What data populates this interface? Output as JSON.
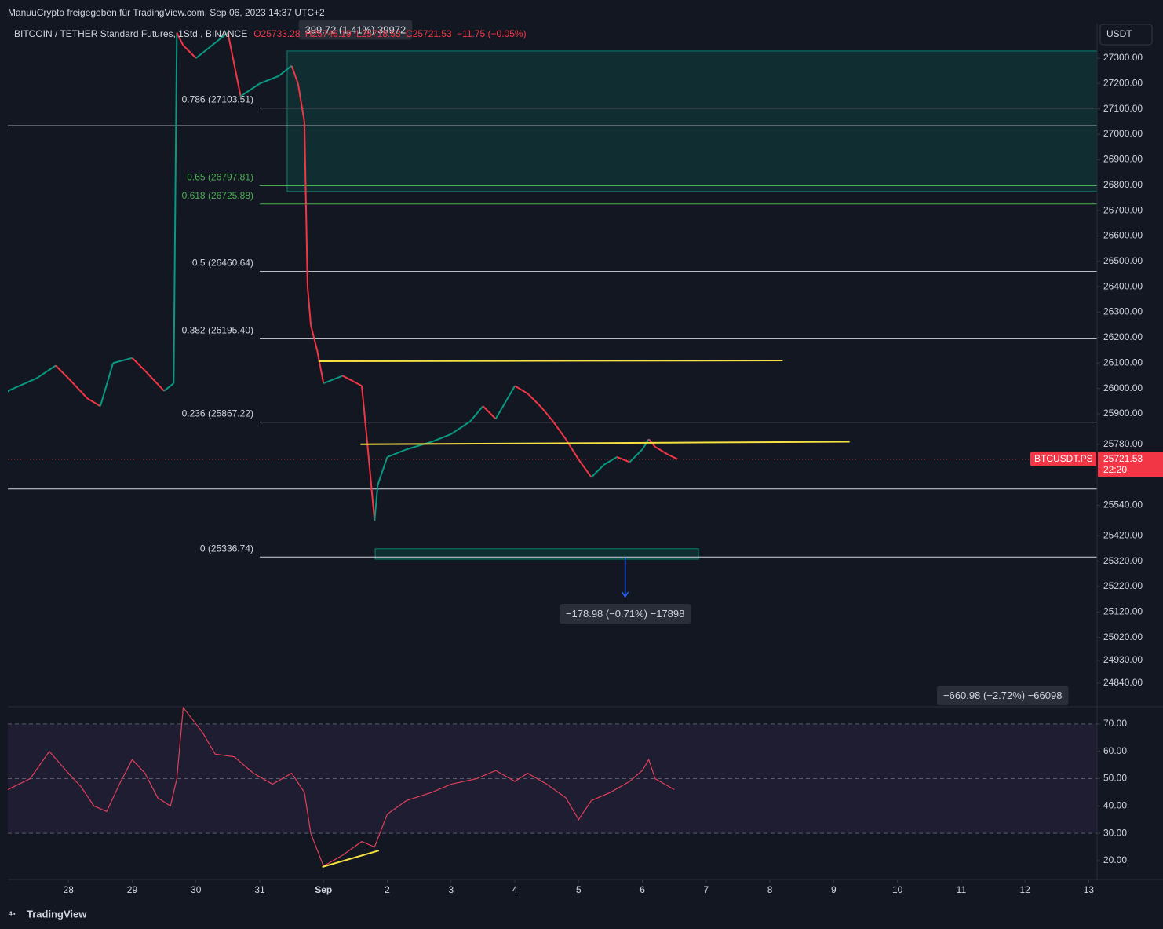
{
  "header": {
    "author_line": "ManuuCrypto freigegeben für TradingView.com, Sep 06, 2023 14:37 UTC+2",
    "currency": "USDT",
    "footer": "TradingView"
  },
  "chart_data": [
    {
      "type": "line",
      "title": "BITCOIN / TETHER Standard Futures, 1Std., BINANCE",
      "legend_items": [
        "O25733.28",
        "H25746.19",
        "L25718.53",
        "C25721.53",
        "−11.75 (−0.05%)"
      ],
      "up_color": "#089981",
      "down_color": "#f23645",
      "x": [
        -0.95,
        -0.5,
        -0.2,
        0,
        0.3,
        0.5,
        0.7,
        1,
        1.2,
        1.5,
        1.65,
        1.7,
        1.8,
        2,
        2.5,
        2.7,
        3,
        3.3,
        3.5,
        3.6,
        3.7,
        3.75,
        3.8,
        3.9,
        4,
        4.3,
        4.6,
        4.7,
        4.8,
        4.85,
        5,
        5.3,
        5.7,
        6,
        6.3,
        6.5,
        6.7,
        7,
        7.2,
        7.4,
        7.6,
        7.8,
        8,
        8.2,
        8.4,
        8.6,
        8.8,
        9,
        9.1,
        9.2,
        9.4,
        9.55
      ],
      "values": [
        25990,
        26040,
        26090,
        26040,
        25960,
        25930,
        26100,
        26120,
        26070,
        25990,
        26020,
        27400,
        27350,
        27300,
        27400,
        27150,
        27200,
        27230,
        27270,
        27200,
        27050,
        26400,
        26250,
        26150,
        26020,
        26050,
        26010,
        25750,
        25480,
        25620,
        25730,
        25760,
        25790,
        25820,
        25870,
        25930,
        25880,
        26010,
        25980,
        25930,
        25870,
        25800,
        25720,
        25650,
        25700,
        25730,
        25710,
        25760,
        25800,
        25770,
        25740,
        25721.53
      ],
      "xlim": [
        -0.95,
        16.13
      ],
      "xticks": [
        {
          "value": 0,
          "label": "28"
        },
        {
          "value": 1,
          "label": "29"
        },
        {
          "value": 2,
          "label": "30"
        },
        {
          "value": 3,
          "label": "31"
        },
        {
          "value": 4,
          "label": "Sep"
        },
        {
          "value": 5,
          "label": "2"
        },
        {
          "value": 6,
          "label": "3"
        },
        {
          "value": 7,
          "label": "4"
        },
        {
          "value": 8,
          "label": "5"
        },
        {
          "value": 9,
          "label": "6"
        },
        {
          "value": 10,
          "label": "7"
        },
        {
          "value": 11,
          "label": "8"
        },
        {
          "value": 12,
          "label": "9"
        },
        {
          "value": 13,
          "label": "10"
        },
        {
          "value": 14,
          "label": "11"
        },
        {
          "value": 15,
          "label": "12"
        },
        {
          "value": 16,
          "label": "13"
        }
      ],
      "ylim": [
        24747,
        27436
      ],
      "yticks": [
        {
          "value": 27300,
          "label": "27300.00"
        },
        {
          "value": 27200,
          "label": "27200.00"
        },
        {
          "value": 27100,
          "label": "27100.00"
        },
        {
          "value": 27000,
          "label": "27000.00"
        },
        {
          "value": 26900,
          "label": "26900.00"
        },
        {
          "value": 26800,
          "label": "26800.00"
        },
        {
          "value": 26700,
          "label": "26700.00"
        },
        {
          "value": 26600,
          "label": "26600.00"
        },
        {
          "value": 26500,
          "label": "26500.00"
        },
        {
          "value": 26400,
          "label": "26400.00"
        },
        {
          "value": 26300,
          "label": "26300.00"
        },
        {
          "value": 26200,
          "label": "26200.00"
        },
        {
          "value": 26100,
          "label": "26100.00"
        },
        {
          "value": 26000,
          "label": "26000.00"
        },
        {
          "value": 25900,
          "label": "25900.00"
        },
        {
          "value": 25780,
          "label": "25780.00"
        },
        {
          "value": 25540,
          "label": "25540.00"
        },
        {
          "value": 25420,
          "label": "25420.00"
        },
        {
          "value": 25320,
          "label": "25320.00"
        },
        {
          "value": 25220,
          "label": "25220.00"
        },
        {
          "value": 25120,
          "label": "25120.00"
        },
        {
          "value": 25020,
          "label": "25020.00"
        },
        {
          "value": 24930,
          "label": "24930.00"
        },
        {
          "value": 24840,
          "label": "24840.00"
        }
      ],
      "fib_levels": [
        {
          "label": "0.786 (27103.51)",
          "value": 27103.51,
          "color": "#d1d4dc"
        },
        {
          "label": "0.65 (26797.81)",
          "value": 26797.81,
          "color": "#4caf50"
        },
        {
          "label": "0.618 (26725.88)",
          "value": 26725.88,
          "color": "#4caf50"
        },
        {
          "label": "0.5 (26460.64)",
          "value": 26460.64,
          "color": "#d1d4dc"
        },
        {
          "label": "0.382 (26195.40)",
          "value": 26195.4,
          "color": "#d1d4dc"
        },
        {
          "label": "0.236 (25867.22)",
          "value": 25867.22,
          "color": "#d1d4dc"
        },
        {
          "label": "0 (25336.74)",
          "value": 25336.74,
          "color": "#d1d4dc"
        }
      ],
      "fib_start": 3,
      "horizontal_lines": [
        27034,
        25604
      ],
      "zones": [
        {
          "x": [
            3.43,
            16.13
          ],
          "y": [
            26775,
            27328
          ],
          "color": "#089981"
        },
        {
          "x": [
            4.81,
            9.88
          ],
          "y": [
            25328,
            25369
          ],
          "color": "#089981"
        }
      ],
      "trend_lines": [
        {
          "x": [
            3.92,
            11.2
          ],
          "y": [
            26107,
            26110
          ],
          "color": "#f5e142"
        },
        {
          "x": [
            4.58,
            12.25
          ],
          "y": [
            25780,
            25790
          ],
          "color": "#f5e142"
        }
      ],
      "measure": {
        "x": 8.73,
        "y": [
          25336,
          25180
        ],
        "color": "#2962ff"
      },
      "annotations": [
        {
          "label": "399.72 (1.41%) 39972",
          "x": 4.5,
          "y": 27408
        },
        {
          "label": "−178.98 (−0.71%) −17898",
          "x": 8.73,
          "y": 25110
        },
        {
          "label": "−660.98 (−2.72%) −66098",
          "x": 14.65,
          "y": 24788
        }
      ],
      "last_price": 25721.53,
      "countdown": "22:20",
      "symbol": "BTCUSDT.PS"
    },
    {
      "type": "line",
      "color": "#e0405a",
      "x": [
        -0.95,
        -0.6,
        -0.3,
        0,
        0.2,
        0.4,
        0.6,
        0.8,
        1,
        1.2,
        1.4,
        1.6,
        1.7,
        1.8,
        2.1,
        2.3,
        2.6,
        2.9,
        3.2,
        3.5,
        3.7,
        3.8,
        4,
        4.3,
        4.6,
        4.8,
        5,
        5.3,
        5.7,
        6,
        6.4,
        6.7,
        7,
        7.2,
        7.5,
        7.8,
        8,
        8.2,
        8.5,
        8.8,
        9,
        9.1,
        9.2,
        9.5
      ],
      "values": [
        46,
        50,
        60,
        52,
        47,
        40,
        38,
        48,
        57,
        52,
        43,
        40,
        50,
        76,
        67,
        59,
        58,
        52,
        48,
        52,
        45,
        30,
        18,
        22,
        27,
        25,
        37,
        42,
        45,
        48,
        50,
        53,
        49,
        52,
        48,
        43,
        35,
        42,
        45,
        49,
        53,
        57,
        50,
        46
      ],
      "ylim": [
        13.1,
        76.3
      ],
      "yticks": [
        {
          "value": 70,
          "label": "70.00"
        },
        {
          "value": 60,
          "label": "60.00"
        },
        {
          "value": 50,
          "label": "50.00"
        },
        {
          "value": 40,
          "label": "40.00"
        },
        {
          "value": 30,
          "label": "30.00"
        },
        {
          "value": 20,
          "label": "20.00"
        }
      ],
      "levels": [
        70,
        50,
        30
      ],
      "trend_line": {
        "x": [
          3.98,
          4.87
        ],
        "y": [
          17.7,
          23.7
        ],
        "color": "#f5e142"
      }
    }
  ]
}
